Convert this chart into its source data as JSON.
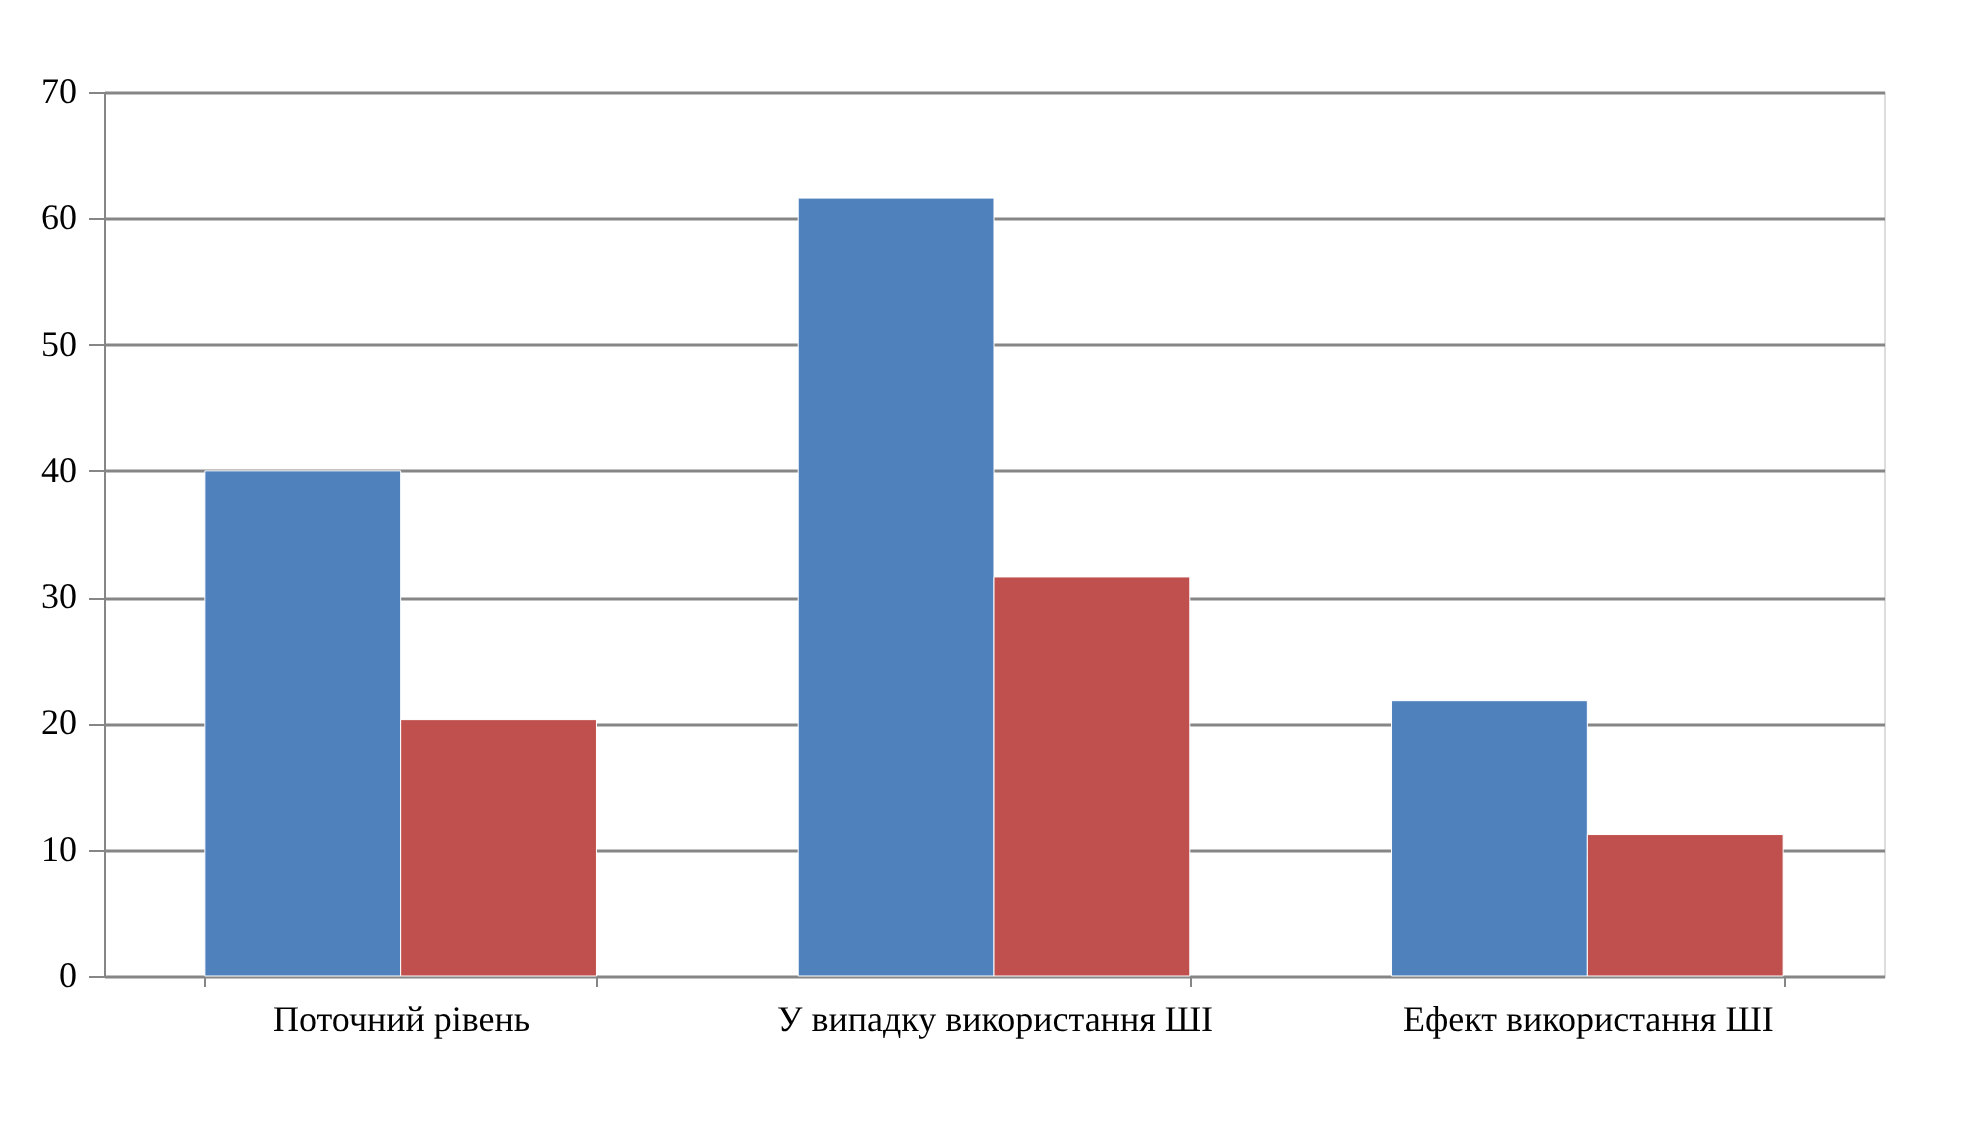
{
  "chart_data": {
    "type": "bar",
    "categories": [
      "Поточний рівень",
      "У випадку використання ШІ",
      "Ефект використання ШІ"
    ],
    "series": [
      {
        "color": "#4f81bd",
        "values": [
          40,
          61.6,
          21.8
        ]
      },
      {
        "color": "#c0504d",
        "values": [
          20.3,
          31.6,
          11.2
        ]
      }
    ],
    "ylim": [
      0,
      70
    ],
    "yticks": [
      0,
      10,
      20,
      30,
      40,
      50,
      60,
      70
    ],
    "grid": "y",
    "legend": false
  }
}
